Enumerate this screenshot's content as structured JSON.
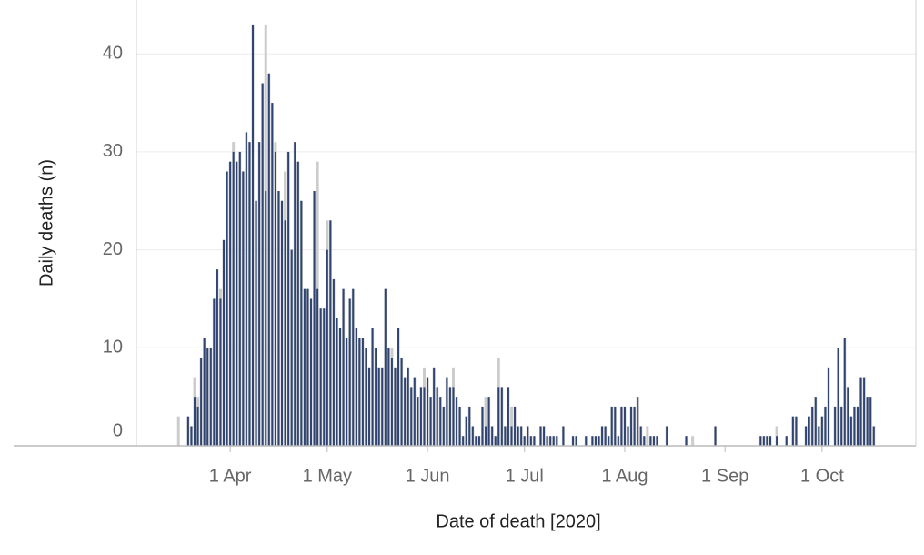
{
  "chart_data": {
    "type": "bar",
    "x_label": "Date of death [2020]",
    "y_label": "Daily deaths (n)",
    "xlim": [
      "2020-03-03",
      "2020-10-30"
    ],
    "xticks": [
      {
        "value": "2020-04-01",
        "label": "1 Apr"
      },
      {
        "value": "2020-05-01",
        "label": "1 May"
      },
      {
        "value": "2020-06-01",
        "label": "1 Jun"
      },
      {
        "value": "2020-07-01",
        "label": "1 Jul"
      },
      {
        "value": "2020-08-01",
        "label": "1 Aug"
      },
      {
        "value": "2020-09-01",
        "label": "1 Sep"
      },
      {
        "value": "2020-10-01",
        "label": "1 Oct"
      }
    ],
    "ylim": [
      0,
      45.5
    ],
    "yticks": [
      0,
      10,
      20,
      30,
      40
    ],
    "grid": true,
    "x": [
      "2020-03-16",
      "2020-03-17",
      "2020-03-18",
      "2020-03-19",
      "2020-03-20",
      "2020-03-21",
      "2020-03-22",
      "2020-03-23",
      "2020-03-24",
      "2020-03-25",
      "2020-03-26",
      "2020-03-27",
      "2020-03-28",
      "2020-03-29",
      "2020-03-30",
      "2020-03-31",
      "2020-04-01",
      "2020-04-02",
      "2020-04-03",
      "2020-04-04",
      "2020-04-05",
      "2020-04-06",
      "2020-04-07",
      "2020-04-08",
      "2020-04-09",
      "2020-04-10",
      "2020-04-11",
      "2020-04-12",
      "2020-04-13",
      "2020-04-14",
      "2020-04-15",
      "2020-04-16",
      "2020-04-17",
      "2020-04-18",
      "2020-04-19",
      "2020-04-20",
      "2020-04-21",
      "2020-04-22",
      "2020-04-23",
      "2020-04-24",
      "2020-04-25",
      "2020-04-26",
      "2020-04-27",
      "2020-04-28",
      "2020-04-29",
      "2020-04-30",
      "2020-05-01",
      "2020-05-02",
      "2020-05-03",
      "2020-05-04",
      "2020-05-05",
      "2020-05-06",
      "2020-05-07",
      "2020-05-08",
      "2020-05-09",
      "2020-05-10",
      "2020-05-11",
      "2020-05-12",
      "2020-05-13",
      "2020-05-14",
      "2020-05-15",
      "2020-05-16",
      "2020-05-17",
      "2020-05-18",
      "2020-05-19",
      "2020-05-20",
      "2020-05-21",
      "2020-05-22",
      "2020-05-23",
      "2020-05-24",
      "2020-05-25",
      "2020-05-26",
      "2020-05-27",
      "2020-05-28",
      "2020-05-29",
      "2020-05-30",
      "2020-05-31",
      "2020-06-01",
      "2020-06-02",
      "2020-06-03",
      "2020-06-04",
      "2020-06-05",
      "2020-06-06",
      "2020-06-07",
      "2020-06-08",
      "2020-06-09",
      "2020-06-10",
      "2020-06-11",
      "2020-06-12",
      "2020-06-13",
      "2020-06-14",
      "2020-06-15",
      "2020-06-16",
      "2020-06-17",
      "2020-06-18",
      "2020-06-19",
      "2020-06-20",
      "2020-06-21",
      "2020-06-22",
      "2020-06-23",
      "2020-06-24",
      "2020-06-25",
      "2020-06-26",
      "2020-06-27",
      "2020-06-28",
      "2020-06-29",
      "2020-06-30",
      "2020-07-01",
      "2020-07-02",
      "2020-07-03",
      "2020-07-04",
      "2020-07-05",
      "2020-07-06",
      "2020-07-07",
      "2020-07-08",
      "2020-07-09",
      "2020-07-10",
      "2020-07-11",
      "2020-07-12",
      "2020-07-13",
      "2020-07-14",
      "2020-07-15",
      "2020-07-16",
      "2020-07-17",
      "2020-07-18",
      "2020-07-19",
      "2020-07-20",
      "2020-07-21",
      "2020-07-22",
      "2020-07-23",
      "2020-07-24",
      "2020-07-25",
      "2020-07-26",
      "2020-07-27",
      "2020-07-28",
      "2020-07-29",
      "2020-07-30",
      "2020-07-31",
      "2020-08-01",
      "2020-08-02",
      "2020-08-03",
      "2020-08-04",
      "2020-08-05",
      "2020-08-06",
      "2020-08-07",
      "2020-08-08",
      "2020-08-09",
      "2020-08-10",
      "2020-08-11",
      "2020-08-12",
      "2020-08-13",
      "2020-08-14",
      "2020-08-15",
      "2020-08-16",
      "2020-08-17",
      "2020-08-18",
      "2020-08-19",
      "2020-08-20",
      "2020-08-21",
      "2020-08-22",
      "2020-08-23",
      "2020-08-24",
      "2020-08-25",
      "2020-08-26",
      "2020-08-27",
      "2020-08-28",
      "2020-08-29",
      "2020-08-30",
      "2020-08-31",
      "2020-09-01",
      "2020-09-02",
      "2020-09-03",
      "2020-09-04",
      "2020-09-05",
      "2020-09-06",
      "2020-09-07",
      "2020-09-08",
      "2020-09-09",
      "2020-09-10",
      "2020-09-11",
      "2020-09-12",
      "2020-09-13",
      "2020-09-14",
      "2020-09-15",
      "2020-09-16",
      "2020-09-17",
      "2020-09-18",
      "2020-09-19",
      "2020-09-20",
      "2020-09-21",
      "2020-09-22",
      "2020-09-23",
      "2020-09-24",
      "2020-09-25",
      "2020-09-26",
      "2020-09-27",
      "2020-09-28",
      "2020-09-29",
      "2020-09-30",
      "2020-10-01",
      "2020-10-02",
      "2020-10-03",
      "2020-10-04",
      "2020-10-05",
      "2020-10-06",
      "2020-10-07",
      "2020-10-08",
      "2020-10-09",
      "2020-10-10",
      "2020-10-11",
      "2020-10-12",
      "2020-10-13",
      "2020-10-14",
      "2020-10-15",
      "2020-10-16",
      "2020-10-17"
    ],
    "series": [
      {
        "color": "#cccccc",
        "values": [
          3,
          0,
          0,
          3,
          2,
          7,
          5,
          9,
          11,
          10,
          10,
          15,
          18,
          16,
          21,
          28,
          29,
          31,
          29,
          30,
          28,
          32,
          31,
          43,
          25,
          31,
          37,
          43,
          38,
          35,
          31,
          26,
          25,
          28,
          30,
          20,
          31,
          29,
          25,
          16,
          16,
          15,
          26,
          29,
          14,
          14,
          23,
          23,
          17,
          13,
          12,
          16,
          11,
          15,
          16,
          12,
          11,
          11,
          10,
          8,
          12,
          10,
          8,
          8,
          16,
          10,
          10,
          8,
          12,
          9,
          7,
          8,
          6,
          7,
          5,
          6,
          8,
          7,
          5,
          8,
          6,
          5,
          4,
          7,
          6,
          8,
          5,
          4,
          1,
          3,
          4,
          2,
          1,
          1,
          4,
          5,
          5,
          2,
          1,
          9,
          6,
          2,
          6,
          4,
          4,
          2,
          2,
          1,
          2,
          1,
          1,
          0,
          2,
          2,
          1,
          1,
          1,
          1,
          0,
          2,
          0,
          0,
          1,
          1,
          0,
          0,
          1,
          0,
          1,
          1,
          1,
          2,
          2,
          1,
          4,
          4,
          1,
          4,
          4,
          2,
          4,
          4,
          5,
          2,
          1,
          2,
          1,
          1,
          1,
          0,
          0,
          2,
          0,
          0,
          0,
          0,
          0,
          1,
          0,
          1,
          0,
          0,
          0,
          0,
          0,
          0,
          2,
          0,
          0,
          0,
          0,
          0,
          0,
          0,
          0,
          0,
          0,
          0,
          0,
          0,
          1,
          1,
          1,
          1,
          0,
          2,
          0,
          0,
          1,
          0,
          3,
          3,
          0,
          0,
          2,
          3,
          4,
          5,
          2,
          3,
          4,
          8,
          0,
          4,
          10,
          4,
          11,
          6,
          3,
          4,
          4,
          7,
          7,
          5,
          5,
          2
        ]
      },
      {
        "color": "#2f4472",
        "values": [
          0,
          0,
          0,
          3,
          2,
          5,
          4,
          9,
          11,
          10,
          10,
          15,
          18,
          15,
          21,
          28,
          29,
          30,
          29,
          30,
          28,
          32,
          31,
          43,
          25,
          31,
          37,
          26,
          38,
          35,
          30,
          26,
          25,
          23,
          30,
          20,
          31,
          29,
          25,
          16,
          16,
          15,
          26,
          16,
          14,
          14,
          20,
          23,
          17,
          13,
          12,
          16,
          11,
          15,
          16,
          12,
          11,
          11,
          10,
          8,
          12,
          10,
          8,
          8,
          16,
          10,
          9,
          8,
          12,
          9,
          7,
          8,
          6,
          7,
          5,
          6,
          6,
          7,
          5,
          8,
          6,
          5,
          4,
          7,
          6,
          6,
          5,
          4,
          1,
          3,
          4,
          2,
          1,
          1,
          4,
          2,
          5,
          2,
          1,
          6,
          6,
          2,
          6,
          2,
          4,
          2,
          2,
          1,
          2,
          1,
          1,
          0,
          2,
          2,
          1,
          1,
          1,
          1,
          0,
          2,
          0,
          0,
          1,
          1,
          0,
          0,
          1,
          0,
          1,
          1,
          1,
          2,
          2,
          1,
          4,
          4,
          1,
          4,
          4,
          2,
          4,
          4,
          5,
          2,
          1,
          0,
          1,
          1,
          1,
          0,
          0,
          2,
          0,
          0,
          0,
          0,
          0,
          1,
          0,
          0,
          0,
          0,
          0,
          0,
          0,
          0,
          2,
          0,
          0,
          0,
          0,
          0,
          0,
          0,
          0,
          0,
          0,
          0,
          0,
          0,
          1,
          1,
          1,
          1,
          0,
          1,
          0,
          0,
          1,
          0,
          3,
          3,
          0,
          0,
          2,
          3,
          4,
          5,
          2,
          3,
          4,
          8,
          0,
          4,
          10,
          4,
          11,
          6,
          3,
          4,
          4,
          7,
          7,
          5,
          5,
          2
        ]
      }
    ]
  }
}
